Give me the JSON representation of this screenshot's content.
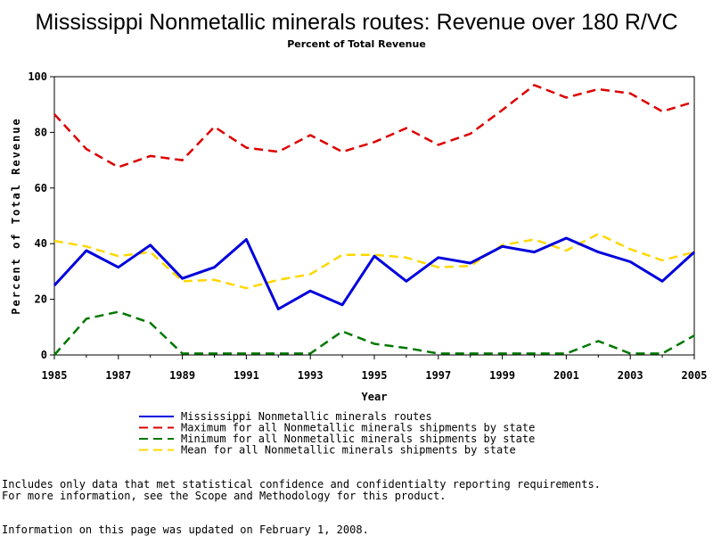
{
  "chart_data": {
    "type": "line",
    "title": "Mississippi Nonmetallic minerals routes: Revenue over 180 R/VC",
    "subtitle": "Percent of Total Revenue",
    "xlabel": "Year",
    "ylabel": "Percent of Total Revenue",
    "xlim": [
      1985,
      2005
    ],
    "ylim": [
      0,
      100
    ],
    "x_ticks": [
      "1985",
      "1987",
      "1989",
      "1991",
      "1993",
      "1995",
      "1997",
      "1999",
      "2001",
      "2003",
      "2005"
    ],
    "y_ticks": [
      "0",
      "20",
      "40",
      "60",
      "80",
      "100"
    ],
    "x": [
      1985,
      1986,
      1987,
      1988,
      1989,
      1990,
      1991,
      1992,
      1993,
      1994,
      1995,
      1996,
      1997,
      1998,
      1999,
      2000,
      2001,
      2002,
      2003,
      2004,
      2005
    ],
    "series": [
      {
        "name": "Mississippi Nonmetallic minerals routes",
        "color": "#0000dd",
        "style": "solid",
        "values": [
          25,
          37.5,
          31.5,
          39.5,
          27.5,
          31.5,
          41.5,
          16.5,
          23,
          18,
          35.5,
          26.5,
          35,
          33,
          39,
          37,
          42,
          37,
          33.5,
          26.5,
          37
        ]
      },
      {
        "name": "Maximum for all Nonmetallic minerals shipments by state",
        "color": "#dd0000",
        "style": "dashed",
        "values": [
          86.5,
          74,
          67.5,
          71.5,
          70,
          82,
          74.5,
          73,
          79,
          73,
          76.5,
          81.5,
          75.5,
          79.5,
          88,
          97,
          92.5,
          95.5,
          94,
          87.5,
          91
        ]
      },
      {
        "name": "Minimum for all Nonmetallic minerals shipments by state",
        "color": "#007700",
        "style": "dashed",
        "values": [
          0,
          13,
          15.5,
          11.5,
          0.5,
          0.5,
          0.5,
          0.5,
          0.5,
          8.5,
          4,
          2.5,
          0.5,
          0.5,
          0.5,
          0.5,
          0.5,
          5,
          0.5,
          0.5,
          7
        ]
      },
      {
        "name": "Mean for all Nonmetallic minerals shipments by state",
        "color": "#ffd700",
        "style": "dashed",
        "values": [
          41,
          39,
          35.5,
          37,
          26.5,
          27,
          24,
          27,
          29,
          36,
          36,
          35,
          31.5,
          32,
          39.5,
          41.5,
          37.5,
          43.5,
          38,
          34,
          37
        ]
      }
    ],
    "grid": false,
    "legend_position": "bottom"
  },
  "notes": {
    "line1": "Includes only data that met statistical confidence and confidentialty reporting requirements.",
    "line2": "For more information, see the Scope and Methodology for this product.",
    "updated": "Information on this page was updated on February 1, 2008."
  }
}
